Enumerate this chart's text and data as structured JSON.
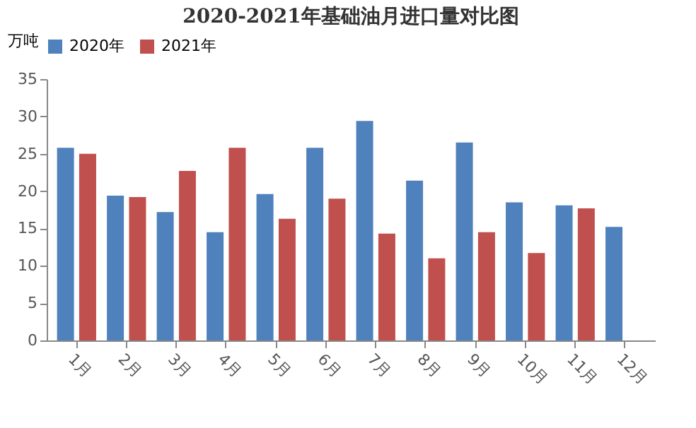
{
  "chart_data": {
    "type": "bar",
    "title": "2020-2021年基础油月进口量对比图",
    "ylabel": "万吨",
    "categories": [
      "1月",
      "2月",
      "3月",
      "4月",
      "5月",
      "6月",
      "7月",
      "8月",
      "9月",
      "10月",
      "11月",
      "12月"
    ],
    "series": [
      {
        "name": "2020年",
        "color": "#4f81bd",
        "values": [
          25.8,
          19.4,
          17.2,
          14.5,
          19.6,
          25.8,
          29.4,
          21.4,
          26.5,
          18.5,
          18.1,
          15.2
        ]
      },
      {
        "name": "2021年",
        "color": "#c0504d",
        "values": [
          25.0,
          19.2,
          22.7,
          25.8,
          16.3,
          19.0,
          14.3,
          11.0,
          14.5,
          11.7,
          17.7,
          null
        ]
      }
    ],
    "ylim": [
      0,
      35
    ],
    "yticks": [
      0,
      5,
      10,
      15,
      20,
      25,
      30,
      35
    ],
    "grid": false,
    "legend": "top"
  }
}
